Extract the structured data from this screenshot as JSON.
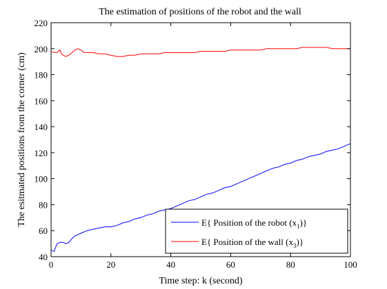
{
  "chart_data": {
    "type": "line",
    "title": "The estimation of positions of the robot and the wall",
    "xlabel": "Time step: k (second)",
    "ylabel": "The esitmated positions from the corner (cm)",
    "xlim": [
      0,
      100
    ],
    "ylim": [
      40,
      220
    ],
    "xticks": [
      0,
      20,
      40,
      60,
      80,
      100
    ],
    "yticks": [
      40,
      60,
      80,
      100,
      120,
      140,
      160,
      180,
      200,
      220
    ],
    "grid": false,
    "legend_position": "bottom-right",
    "series": [
      {
        "name": "E{ Position of the robot (x",
        "subscript": "1",
        "name_suffix": ")}",
        "color": "#0000ff",
        "x": [
          0,
          1,
          1.5,
          2,
          3,
          4,
          5,
          6,
          7,
          8,
          9,
          10,
          12,
          14,
          16,
          18,
          20,
          22,
          24,
          26,
          28,
          30,
          32,
          34,
          36,
          38,
          40,
          42,
          44,
          46,
          48,
          50,
          52,
          54,
          56,
          58,
          60,
          62,
          64,
          66,
          68,
          70,
          72,
          74,
          76,
          78,
          80,
          82,
          84,
          86,
          88,
          90,
          92,
          94,
          96,
          98,
          100
        ],
        "y": [
          45,
          44,
          47,
          50,
          51,
          51,
          50,
          51,
          54,
          56,
          57,
          58,
          60,
          61,
          62,
          63,
          63,
          64,
          66,
          67,
          69,
          70,
          72,
          73,
          75,
          76,
          77,
          79,
          81,
          83,
          84,
          86,
          88,
          89,
          91,
          93,
          94,
          96,
          98,
          100,
          102,
          104,
          106,
          108,
          109,
          111,
          112,
          114,
          115,
          117,
          118,
          119,
          121,
          122,
          123,
          125,
          127
        ]
      },
      {
        "name": "E{ Position of the wall (x",
        "subscript": "3",
        "name_suffix": ")}",
        "color": "#ff0000",
        "x": [
          0,
          1,
          2,
          3,
          3.5,
          4,
          5,
          6,
          7,
          8,
          9,
          10,
          11,
          12,
          14,
          16,
          18,
          20,
          22,
          24,
          26,
          28,
          30,
          32,
          34,
          36,
          38,
          40,
          42,
          44,
          46,
          48,
          50,
          52,
          54,
          56,
          58,
          60,
          62,
          64,
          66,
          68,
          70,
          72,
          74,
          76,
          78,
          80,
          82,
          84,
          86,
          88,
          90,
          92,
          94,
          96,
          98,
          100
        ],
        "y": [
          198,
          197,
          197,
          199,
          196,
          195,
          194,
          195,
          197,
          199,
          200,
          199,
          197,
          197,
          197,
          196,
          196,
          195,
          194,
          194,
          195,
          195,
          196,
          196,
          196,
          196,
          197,
          197,
          197,
          197,
          197,
          197,
          198,
          198,
          198,
          198,
          198,
          199,
          199,
          199,
          199,
          199,
          199,
          200,
          200,
          200,
          200,
          200,
          200,
          201,
          201,
          201,
          201,
          201,
          200,
          200,
          200,
          200
        ]
      }
    ]
  }
}
